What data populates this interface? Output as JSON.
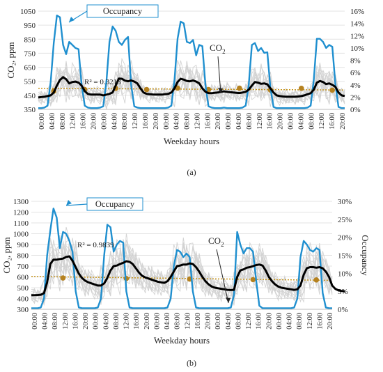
{
  "chart_data": [
    {
      "type": "line",
      "panel_label": "(a)",
      "xlabel": "Weekday hours",
      "ylabel_left": "CO₂, ppm",
      "ylabel_right": "",
      "ylim_left": [
        350,
        1050
      ],
      "yticks_left": [
        350,
        450,
        550,
        650,
        750,
        850,
        950,
        1050
      ],
      "ylim_right": [
        0,
        16
      ],
      "yticks_right": [
        "0%",
        "2%",
        "4%",
        "6%",
        "8%",
        "10%",
        "12%",
        "14%",
        "16%"
      ],
      "x_ticks": [
        "00:00",
        "04:00",
        "08:00",
        "12:00",
        "16:00",
        "20:00",
        "00:00",
        "04:00",
        "08:00",
        "12:00",
        "16:00",
        "20:00",
        "00:00",
        "04:00",
        "08:00",
        "12:00",
        "16:00",
        "20:00",
        "00:00",
        "04:00",
        "08:00",
        "12:00",
        "16:00",
        "20:00",
        "00:00",
        "04:00",
        "08:00",
        "12:00",
        "16:00",
        "20:00"
      ],
      "annotations": {
        "occupancy": "Occupancy",
        "co2_prefix": "CO",
        "co2_sub": "2",
        "r2": "R² = 0.3213"
      },
      "trend": {
        "start": 500,
        "end": 488
      },
      "trend_markers": [
        480,
        491,
        500,
        491,
        502,
        491,
        501,
        488,
        500,
        487
      ],
      "series": [
        {
          "color": "#1f8fcf",
          "axis": "right",
          "values": [
            0.2,
            0.2,
            0.3,
            0.6,
            4.5,
            10.8,
            15.3,
            15.0,
            10.5,
            9.0,
            11.0,
            10.5,
            10.0,
            9.8,
            4.0,
            0.6,
            0.3,
            0.2,
            0.2,
            0.2,
            0.3,
            0.5,
            4.5,
            11.0,
            13.5,
            12.8,
            11.0,
            10.5,
            11.3,
            11.8,
            4.0,
            0.5,
            0.3,
            0.2,
            0.2,
            0.2,
            0.2,
            0.2,
            0.2,
            0.2,
            0.2,
            0.2,
            0.3,
            0.6,
            4.8,
            11.5,
            14.3,
            14.0,
            11.0,
            10.8,
            11.3,
            8.8,
            10.5,
            10.3,
            4.0,
            0.5,
            0.3,
            0.2,
            0.2,
            0.2,
            0.3,
            0.2,
            0.2,
            0.2,
            0.2,
            0.2,
            0.3,
            0.6,
            4.0,
            10.5,
            10.8,
            9.5,
            10.0,
            9.2,
            9.3,
            3.5,
            0.4,
            0.2,
            0.2,
            0.2,
            0.2,
            0.2,
            0.2,
            0.2,
            0.2,
            0.2,
            0.2,
            0.3,
            0.6,
            4.8,
            11.5,
            11.5,
            11.0,
            10.0,
            10.5,
            10.2,
            4.0,
            0.4,
            0.2,
            0.2
          ]
        },
        {
          "color": "#000000",
          "axis": "left",
          "values": [
            435,
            438,
            440,
            445,
            450,
            470,
            520,
            560,
            580,
            565,
            535,
            545,
            548,
            540,
            520,
            480,
            460,
            455,
            455,
            455,
            455,
            450,
            455,
            460,
            470,
            520,
            570,
            568,
            555,
            550,
            556,
            548,
            535,
            500,
            470,
            460,
            458,
            456,
            455,
            455,
            455,
            458,
            460,
            470,
            500,
            545,
            568,
            562,
            552,
            550,
            556,
            548,
            535,
            500,
            475,
            466,
            465,
            468,
            470,
            475,
            478,
            475,
            472,
            470,
            468,
            466,
            470,
            475,
            490,
            520,
            545,
            540,
            532,
            535,
            528,
            500,
            470,
            450,
            445,
            442,
            440,
            440,
            440,
            440,
            442,
            445,
            450,
            458,
            465,
            490,
            540,
            552,
            545,
            530,
            535,
            525,
            510,
            470,
            450,
            445
          ]
        }
      ]
    },
    {
      "type": "line",
      "panel_label": "(b)",
      "xlabel": "Weekday hours",
      "ylabel_left": "CO₂, ppm",
      "ylabel_right": "Occupancy",
      "ylim_left": [
        300,
        1300
      ],
      "yticks_left": [
        300,
        400,
        500,
        600,
        700,
        800,
        900,
        1000,
        1100,
        1200,
        1300
      ],
      "ylim_right": [
        0,
        30
      ],
      "yticks_right": [
        "0%",
        "5%",
        "10%",
        "15%",
        "20%",
        "25%",
        "30%"
      ],
      "x_ticks": [
        "00:00",
        "04:00",
        "08:00",
        "12:00",
        "16:00",
        "20:00",
        "00:00",
        "04:00",
        "08:00",
        "12:00",
        "16:00",
        "20:00",
        "00:00",
        "04:00",
        "08:00",
        "12:00",
        "16:00",
        "20:00",
        "00:00",
        "04:00",
        "08:00",
        "12:00",
        "16:00",
        "20:00",
        "00:00",
        "04:00",
        "08:00",
        "12:00",
        "16:00",
        "20:00"
      ],
      "annotations": {
        "occupancy": "Occupancy",
        "co2_prefix": "CO",
        "co2_sub": "2",
        "r2": "R² = 0.9839"
      },
      "trend": {
        "start": 604,
        "end": 568
      },
      "trend_markers": [
        590,
        585,
        580,
        575,
        572
      ],
      "series": [
        {
          "color": "#1f8fcf",
          "axis": "right",
          "values": [
            0.3,
            0.3,
            0.3,
            0.5,
            3.0,
            15.0,
            22.0,
            28.0,
            25.5,
            17.0,
            21.5,
            21.0,
            19.0,
            16.0,
            5.0,
            0.5,
            0.3,
            0.3,
            0.3,
            0.3,
            0.3,
            0.5,
            3.0,
            15.0,
            23.5,
            22.8,
            16.0,
            18.0,
            19.0,
            18.5,
            5.0,
            0.5,
            0.3,
            0.3,
            0.3,
            0.3,
            0.3,
            0.3,
            0.3,
            0.3,
            0.3,
            0.3,
            0.3,
            0.5,
            3.0,
            12.0,
            16.5,
            16.0,
            14.5,
            15.5,
            14.5,
            5.0,
            0.5,
            0.3,
            0.3,
            0.3,
            0.3,
            0.3,
            0.3,
            0.3,
            0.3,
            0.3,
            0.3,
            0.5,
            4.0,
            21.5,
            18.0,
            15.5,
            17.0,
            17.0,
            16.0,
            8.0,
            1.0,
            0.3,
            0.3,
            0.3,
            0.3,
            0.3,
            0.3,
            0.3,
            0.3,
            0.3,
            0.3,
            0.5,
            3.0,
            14.5,
            19.0,
            18.0,
            16.5,
            16.0,
            17.0,
            16.5,
            4.5,
            0.5,
            0.3,
            0.3
          ]
        },
        {
          "color": "#000000",
          "axis": "left",
          "values": [
            430,
            430,
            432,
            435,
            450,
            550,
            720,
            760,
            760,
            765,
            770,
            785,
            790,
            750,
            690,
            630,
            590,
            565,
            550,
            540,
            530,
            520,
            520,
            540,
            590,
            660,
            700,
            705,
            720,
            730,
            745,
            740,
            720,
            680,
            640,
            610,
            595,
            585,
            575,
            565,
            555,
            550,
            545,
            560,
            600,
            650,
            700,
            705,
            715,
            715,
            725,
            720,
            690,
            650,
            600,
            560,
            530,
            510,
            500,
            495,
            490,
            485,
            480,
            478,
            480,
            600,
            660,
            670,
            685,
            690,
            700,
            710,
            715,
            705,
            660,
            600,
            560,
            530,
            510,
            500,
            495,
            490,
            485,
            480,
            485,
            520,
            620,
            680,
            690,
            690,
            685,
            690,
            680,
            650,
            600,
            520,
            490,
            475,
            470,
            465
          ]
        }
      ]
    }
  ]
}
